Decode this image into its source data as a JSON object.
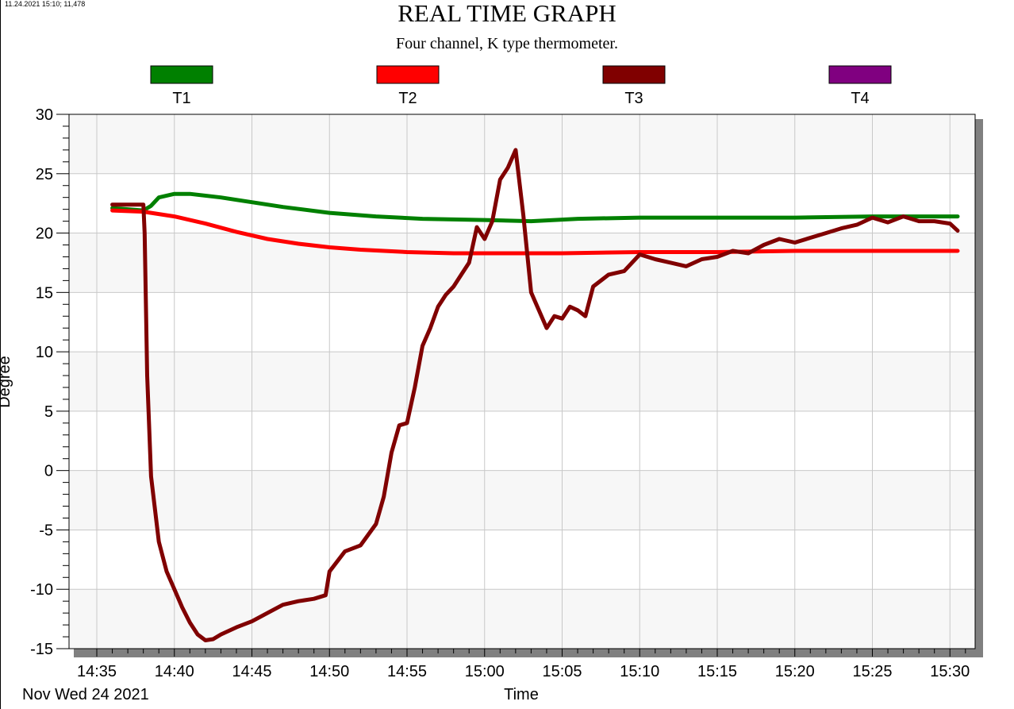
{
  "header": {
    "corner_info": "11.24.2021 15:10; 11,478",
    "title": "REAL TIME GRAPH",
    "subtitle": "Four channel, K type thermometer."
  },
  "chart_data": {
    "type": "line",
    "title": "REAL TIME GRAPH",
    "subtitle": "Four channel, K type thermometer.",
    "xlabel": "Time",
    "ylabel": "Degree",
    "date_label": "Nov Wed 24 2021",
    "x_unit": "minutes after 14:35",
    "xlim": [
      0,
      56.5
    ],
    "ylim": [
      -15,
      30
    ],
    "grid": true,
    "legend_position": "top",
    "y_ticks": [
      "30",
      "25",
      "20",
      "15",
      "10",
      "5",
      "0",
      "-5",
      "-10",
      "-15"
    ],
    "x_ticks": [
      "14:35",
      "14:40",
      "14:45",
      "14:50",
      "14:55",
      "15:00",
      "15:05",
      "15:10",
      "15:15",
      "15:20",
      "15:25",
      "15:30"
    ],
    "series": [
      {
        "name": "T1",
        "color": "#008000",
        "x": [
          "14:36",
          "14:38",
          "14:38:30",
          "14:39",
          "14:40",
          "14:41",
          "14:43",
          "14:45",
          "14:47",
          "14:50",
          "14:53",
          "14:56",
          "15:00",
          "15:03",
          "15:06",
          "15:10",
          "15:15",
          "15:20",
          "15:25",
          "15:30:30"
        ],
        "y": [
          22.1,
          21.9,
          22.3,
          23.0,
          23.3,
          23.3,
          23.0,
          22.6,
          22.2,
          21.7,
          21.4,
          21.2,
          21.1,
          21.0,
          21.2,
          21.3,
          21.3,
          21.3,
          21.4,
          21.4
        ]
      },
      {
        "name": "T2",
        "color": "#ff0000",
        "x": [
          "14:36",
          "14:38",
          "14:40",
          "14:42",
          "14:44",
          "14:46",
          "14:48",
          "14:50",
          "14:52",
          "14:55",
          "14:58",
          "15:00",
          "15:05",
          "15:10",
          "15:15",
          "15:20",
          "15:25",
          "15:30:30"
        ],
        "y": [
          21.9,
          21.8,
          21.4,
          20.8,
          20.1,
          19.5,
          19.1,
          18.8,
          18.6,
          18.4,
          18.3,
          18.3,
          18.3,
          18.4,
          18.4,
          18.5,
          18.5,
          18.5
        ]
      },
      {
        "name": "T3",
        "color": "#800000",
        "x": [
          "14:36",
          "14:37",
          "14:38",
          "14:38:05",
          "14:38:15",
          "14:38:30",
          "14:39",
          "14:39:30",
          "14:40",
          "14:40:30",
          "14:41",
          "14:41:30",
          "14:42",
          "14:42:30",
          "14:43",
          "14:44",
          "14:45",
          "14:46",
          "14:47",
          "14:48",
          "14:49",
          "14:49:45",
          "14:50",
          "14:51",
          "14:52",
          "14:53",
          "14:53:30",
          "14:54",
          "14:54:30",
          "14:55",
          "14:55:30",
          "14:56",
          "14:56:30",
          "14:57",
          "14:57:30",
          "14:58",
          "14:58:30",
          "14:59",
          "14:59:30",
          "15:00",
          "15:00:30",
          "15:01",
          "15:01:30",
          "15:02",
          "15:02:30",
          "15:03",
          "15:03:30",
          "15:04",
          "15:04:30",
          "15:05",
          "15:05:30",
          "15:06",
          "15:06:30",
          "15:07",
          "15:08",
          "15:09",
          "15:10",
          "15:11",
          "15:12",
          "15:13",
          "15:14",
          "15:15",
          "15:16",
          "15:17",
          "15:18",
          "15:19",
          "15:20",
          "15:21",
          "15:22",
          "15:23",
          "15:24",
          "15:25",
          "15:26",
          "15:27",
          "15:28",
          "15:29",
          "15:30",
          "15:30:30"
        ],
        "y": [
          22.4,
          22.4,
          22.4,
          20.0,
          8.0,
          -0.5,
          -6.0,
          -8.5,
          -10.0,
          -11.5,
          -12.8,
          -13.8,
          -14.3,
          -14.2,
          -13.8,
          -13.2,
          -12.7,
          -12.0,
          -11.3,
          -11.0,
          -10.8,
          -10.5,
          -8.5,
          -6.8,
          -6.3,
          -4.5,
          -2.2,
          1.5,
          3.8,
          4.0,
          7.0,
          10.5,
          12.0,
          13.8,
          14.8,
          15.5,
          16.5,
          17.5,
          20.5,
          19.5,
          21.0,
          24.5,
          25.5,
          27.0,
          21.5,
          15.0,
          13.5,
          12.0,
          13.0,
          12.8,
          13.8,
          13.5,
          13.0,
          15.5,
          16.5,
          16.8,
          18.2,
          17.8,
          17.5,
          17.2,
          17.8,
          18.0,
          18.5,
          18.3,
          19.0,
          19.5,
          19.2,
          19.6,
          20.0,
          20.4,
          20.7,
          21.3,
          20.9,
          21.4,
          21.0,
          21.0,
          20.8,
          20.2
        ]
      },
      {
        "name": "T4",
        "color": "#800080",
        "x": [],
        "y": []
      }
    ]
  }
}
